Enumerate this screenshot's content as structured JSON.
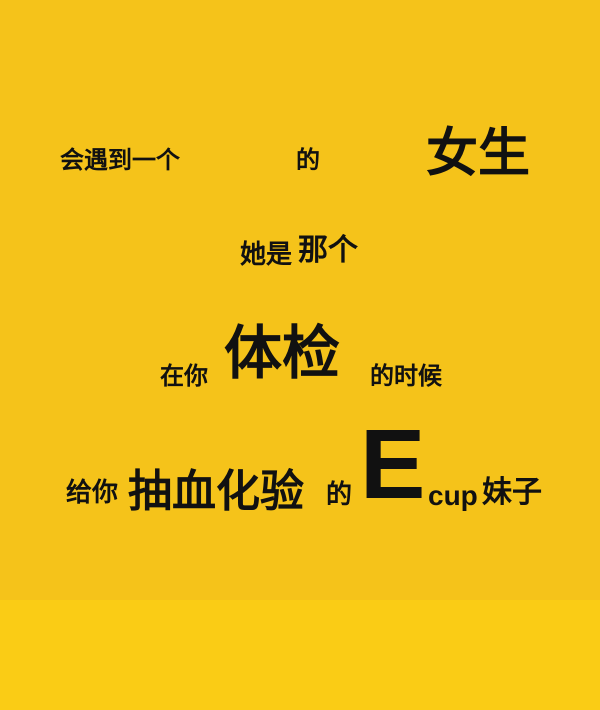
{
  "background_color": "#F5C31A",
  "text_color": "#111111",
  "line1": {
    "part1": "会遇到一个",
    "part2": "的",
    "part3": "女生"
  },
  "line2": {
    "part1": "她是",
    "part2": "那个"
  },
  "line3": {
    "part1": "在你",
    "part2": "体检",
    "part3": "的时候"
  },
  "line4": {
    "part1": "给你",
    "part2": "抽血化验",
    "part3": "的",
    "part4": "E",
    "part5": "cup",
    "part6": "妹子"
  }
}
